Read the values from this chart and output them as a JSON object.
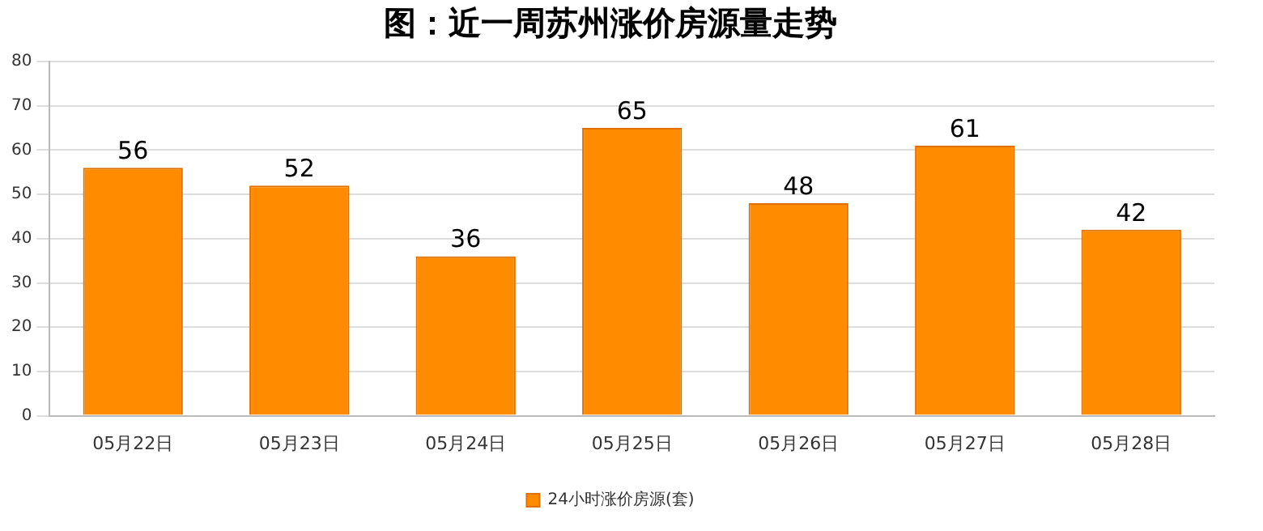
{
  "chart_data": {
    "type": "bar",
    "title": "图：近一周苏州涨价房源量走势",
    "categories": [
      "05月22日",
      "05月23日",
      "05月24日",
      "05月25日",
      "05月26日",
      "05月27日",
      "05月28日"
    ],
    "series": [
      {
        "name": "24小时涨价房源(套)",
        "color": "#ff8c00",
        "values": [
          56,
          52,
          36,
          65,
          48,
          61,
          42
        ]
      }
    ],
    "ylim": [
      0,
      80
    ],
    "yticks": [
      0,
      10,
      20,
      30,
      40,
      50,
      60,
      70,
      80
    ],
    "grid": "y",
    "legend": "bottom",
    "data_labels": true
  }
}
